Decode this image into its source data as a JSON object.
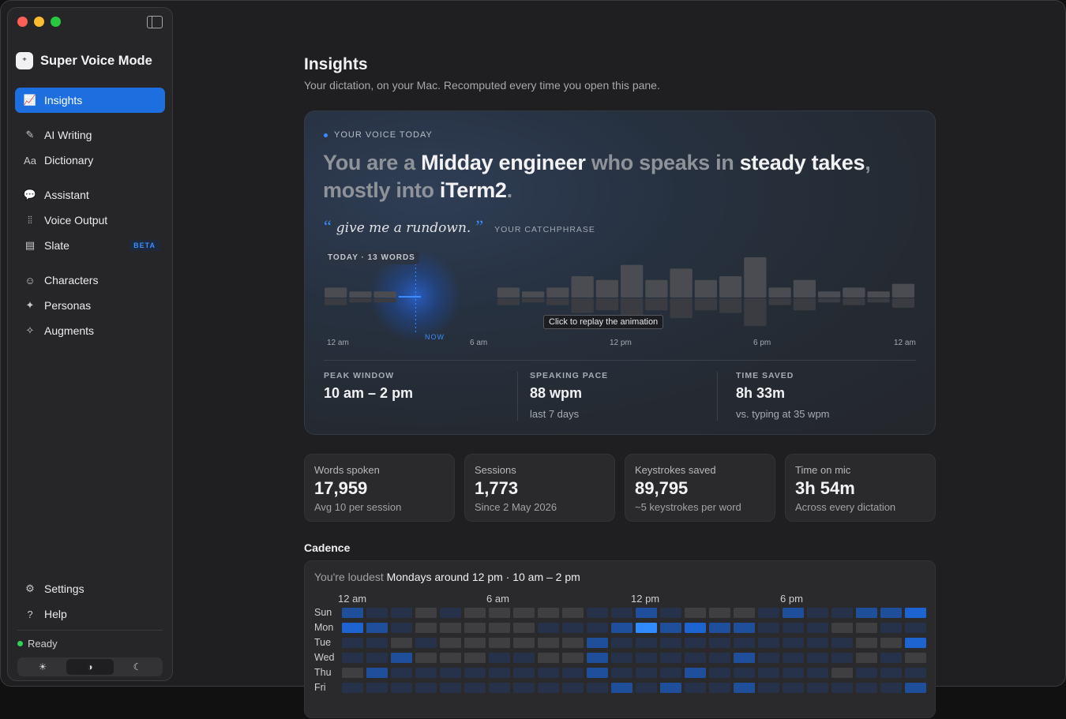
{
  "app": {
    "name": "Super Voice Mode"
  },
  "sidebar": {
    "groups": [
      [
        {
          "label": "Insights",
          "icon": "chart-line-icon",
          "glyph": "📈",
          "active": true
        }
      ],
      [
        {
          "label": "AI Writing",
          "icon": "ai-writing-icon",
          "glyph": "✎"
        },
        {
          "label": "Dictionary",
          "icon": "dictionary-icon",
          "glyph": "Aa"
        }
      ],
      [
        {
          "label": "Assistant",
          "icon": "chat-bubbles-icon",
          "glyph": "💬"
        },
        {
          "label": "Voice Output",
          "icon": "waveform-icon",
          "glyph": "⦙⦙"
        },
        {
          "label": "Slate",
          "icon": "slate-icon",
          "glyph": "▤",
          "badge": "BETA"
        }
      ],
      [
        {
          "label": "Characters",
          "icon": "theater-masks-icon",
          "glyph": "☺"
        },
        {
          "label": "Personas",
          "icon": "sparkle-icon",
          "glyph": "✦"
        },
        {
          "label": "Augments",
          "icon": "magic-wand-icon",
          "glyph": "✧"
        }
      ]
    ],
    "bottom": [
      {
        "label": "Settings",
        "icon": "gear-icon",
        "glyph": "⚙"
      },
      {
        "label": "Help",
        "icon": "help-circle-icon",
        "glyph": "?"
      }
    ],
    "status": "Ready",
    "theme_options": [
      {
        "icon": "sun-icon",
        "glyph": "☀"
      },
      {
        "icon": "contrast-icon",
        "glyph": "◑",
        "selected": true
      },
      {
        "icon": "moon-icon",
        "glyph": "☾"
      }
    ]
  },
  "page": {
    "title": "Insights",
    "subtitle": "Your dictation, on your Mac. Recomputed every time you open this pane."
  },
  "hero": {
    "eyebrow": "YOUR VOICE TODAY",
    "headline_parts": [
      {
        "text": "You are a ",
        "strong": false
      },
      {
        "text": "Midday engineer",
        "strong": true
      },
      {
        "text": " who speaks in ",
        "strong": false
      },
      {
        "text": "steady takes",
        "strong": true
      },
      {
        "text": ", mostly into ",
        "strong": false
      },
      {
        "text": "iTerm2",
        "strong": true
      },
      {
        "text": ".",
        "strong": false
      }
    ],
    "catchphrase": "give me a rundown.",
    "catchphrase_label": "YOUR CATCHPHRASE",
    "today_badge": "TODAY · 13 WORDS",
    "now_label": "NOW",
    "tooltip": "Click to replay the animation",
    "accent": "#3a8cff",
    "chart_data": {
      "type": "bar",
      "x_ticks": [
        "12 am",
        "6 am",
        "12 pm",
        "6 pm",
        "12 am"
      ],
      "hours": [
        0,
        1,
        2,
        3,
        4,
        5,
        6,
        7,
        8,
        9,
        10,
        11,
        12,
        13,
        14,
        15,
        16,
        17,
        18,
        19,
        20,
        21,
        22,
        23
      ],
      "activity_levels": [
        2,
        1,
        1,
        1,
        0,
        0,
        0,
        2,
        1,
        2,
        5,
        4,
        8,
        4,
        7,
        4,
        5,
        10,
        2,
        4,
        1,
        2,
        1,
        3
      ],
      "today_hour": 3
    },
    "stats": [
      {
        "label": "PEAK WINDOW",
        "value": "10 am – 2 pm",
        "sub": ""
      },
      {
        "label": "SPEAKING PACE",
        "value": "88 wpm",
        "sub": "last 7 days"
      },
      {
        "label": "TIME SAVED",
        "value": "8h 33m",
        "sub": "vs. typing at 35 wpm"
      }
    ]
  },
  "cards": [
    {
      "label": "Words spoken",
      "value": "17,959",
      "sub": "Avg 10 per session"
    },
    {
      "label": "Sessions",
      "value": "1,773",
      "sub": "Since 2 May 2026"
    },
    {
      "label": "Keystrokes saved",
      "value": "89,795",
      "sub": "~5 keystrokes per word"
    },
    {
      "label": "Time on mic",
      "value": "3h 54m",
      "sub": "Across every dictation"
    }
  ],
  "cadence": {
    "title": "Cadence",
    "summary_muted": "You're loudest ",
    "summary_strong": "Mondays around 12 pm · 10 am – 2 pm",
    "x_ticks": [
      "12 am",
      "6 am",
      "12 pm",
      "6 pm"
    ],
    "days": [
      "Sun",
      "Mon",
      "Tue",
      "Wed",
      "Thu",
      "Fri"
    ],
    "heatmap": [
      [
        2,
        1,
        1,
        0,
        1,
        0,
        0,
        0,
        0,
        0,
        1,
        1,
        2,
        1,
        0,
        0,
        0,
        1,
        2,
        1,
        1,
        2,
        2,
        3
      ],
      [
        3,
        2,
        1,
        0,
        0,
        0,
        0,
        0,
        1,
        1,
        1,
        2,
        4,
        2,
        3,
        2,
        2,
        1,
        1,
        1,
        0,
        0,
        1,
        1
      ],
      [
        1,
        1,
        0,
        1,
        0,
        0,
        0,
        0,
        0,
        0,
        2,
        1,
        1,
        1,
        1,
        1,
        1,
        1,
        1,
        1,
        1,
        0,
        0,
        3
      ],
      [
        1,
        1,
        2,
        0,
        0,
        0,
        1,
        1,
        0,
        0,
        2,
        1,
        1,
        1,
        1,
        1,
        2,
        1,
        1,
        1,
        1,
        0,
        1,
        0
      ],
      [
        0,
        2,
        1,
        1,
        1,
        1,
        1,
        1,
        1,
        1,
        2,
        1,
        1,
        1,
        2,
        1,
        1,
        1,
        1,
        1,
        0,
        1,
        1,
        1
      ],
      [
        1,
        1,
        1,
        1,
        1,
        1,
        1,
        1,
        1,
        1,
        1,
        2,
        1,
        2,
        1,
        1,
        2,
        1,
        1,
        1,
        1,
        1,
        1,
        2
      ]
    ],
    "colors": [
      "#3f3f42",
      "#253249",
      "#1f4f9a",
      "#1d64d0",
      "#2f8bff"
    ]
  }
}
